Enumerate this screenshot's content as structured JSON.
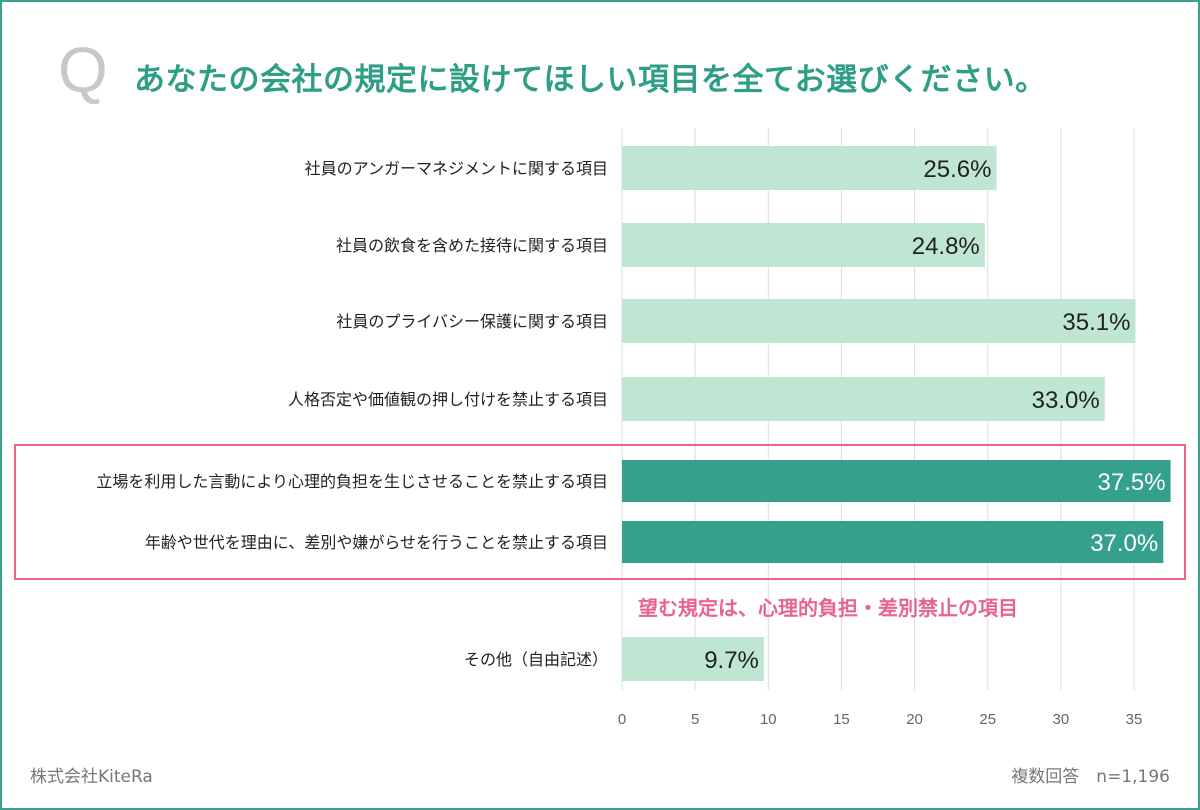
{
  "header": {
    "q_mark": "Q",
    "title": "あなたの会社の規定に設けてほしい項目を全てお選びください。"
  },
  "chart_data": {
    "type": "bar",
    "orientation": "horizontal",
    "title": "あなたの会社の規定に設けてほしい項目を全てお選びください。",
    "categories": [
      "社員のアンガーマネジメントに関する項目",
      "社員の飲食を含めた接待に関する項目",
      "社員のプライバシー保護に関する項目",
      "人格否定や価値観の押し付けを禁止する項目",
      "立場を利用した言動により心理的負担を生じさせることを禁止する項目",
      "年齢や世代を理由に、差別や嫌がらせを行うことを禁止する項目",
      "その他（自由記述）"
    ],
    "values": [
      25.6,
      24.8,
      35.1,
      33.0,
      37.5,
      37.0,
      9.7
    ],
    "value_labels": [
      "25.6%",
      "24.8%",
      "35.1%",
      "33.0%",
      "37.5%",
      "37.0%",
      "9.7%"
    ],
    "highlighted": [
      false,
      false,
      false,
      false,
      true,
      true,
      false
    ],
    "xlim": [
      0,
      37.5
    ],
    "xticks": [
      "0",
      "5",
      "10",
      "15",
      "20",
      "25",
      "30",
      "35"
    ],
    "xtick_values": [
      0,
      5,
      10,
      15,
      20,
      25,
      30,
      35
    ],
    "grid": true,
    "colors": {
      "normal": "#bfe6d3",
      "highlight": "#35a18d",
      "frame": "#3aa38f",
      "accent": "#e8648f"
    }
  },
  "annotation": "望む規定は、心理的負担・差別禁止の項目",
  "footer": {
    "company": "株式会社KiteRa",
    "note": "複数回答　n=1,196"
  }
}
